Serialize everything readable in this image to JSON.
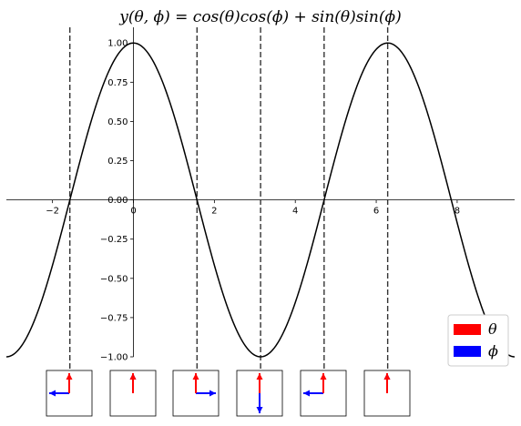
{
  "chart_data": {
    "type": "line",
    "title": "y(θ, ϕ) = cos(θ)cos(ϕ) + sin(θ)sin(ϕ)",
    "xlabel": "",
    "ylabel": "",
    "xlim": [
      -3.14,
      9.42
    ],
    "ylim": [
      -1.0,
      1.1
    ],
    "x_ticks": [
      -2,
      0,
      2,
      4,
      6,
      8
    ],
    "y_ticks": [
      -1.0,
      -0.75,
      -0.5,
      -0.25,
      0.0,
      0.25,
      0.5,
      0.75,
      1.0
    ],
    "x_tick_labels": [
      "−2",
      "0",
      "2",
      "4",
      "6",
      "8"
    ],
    "y_tick_labels": [
      "−1.00",
      "−0.75",
      "−0.50",
      "−0.25",
      "0.00",
      "0.25",
      "0.50",
      "0.75",
      "1.00"
    ],
    "grid": false,
    "series": [
      {
        "function": "cos(x)",
        "color": "#000000",
        "x": [
          -3.14,
          -2.36,
          -1.57,
          -0.79,
          0.0,
          0.79,
          1.57,
          2.36,
          3.14,
          3.93,
          4.71,
          5.5,
          6.28,
          7.07,
          7.85,
          8.64,
          9.42
        ],
        "y": [
          -1.0,
          -0.71,
          0.0,
          0.71,
          1.0,
          0.71,
          0.0,
          -0.71,
          -1.0,
          -0.71,
          0.0,
          0.71,
          1.0,
          0.71,
          0.0,
          -0.71,
          -1.0
        ]
      }
    ],
    "vertical_lines": {
      "style": "dashed",
      "color": "#333333",
      "x": [
        -1.571,
        1.571,
        3.142,
        4.712,
        6.283
      ]
    },
    "insets": [
      {
        "theta": {
          "dx": 0,
          "dy": 1
        },
        "phi": {
          "dx": -1,
          "dy": 0
        }
      },
      {
        "theta": {
          "dx": 0,
          "dy": 1
        },
        "phi": {
          "dx": 0,
          "dy": 1
        }
      },
      {
        "theta": {
          "dx": 0,
          "dy": 1
        },
        "phi": {
          "dx": 1,
          "dy": 0
        }
      },
      {
        "theta": {
          "dx": 0,
          "dy": 1
        },
        "phi": {
          "dx": 0,
          "dy": -1
        }
      },
      {
        "theta": {
          "dx": 0,
          "dy": 1
        },
        "phi": {
          "dx": -1,
          "dy": 0
        }
      },
      {
        "theta": {
          "dx": 0,
          "dy": 1
        },
        "phi": {
          "dx": 0,
          "dy": 1
        }
      }
    ],
    "legend": {
      "placement": "lower-right",
      "entries": [
        {
          "label": "θ",
          "color": "#ff0000"
        },
        {
          "label": "ϕ",
          "color": "#0000ff"
        }
      ]
    }
  }
}
